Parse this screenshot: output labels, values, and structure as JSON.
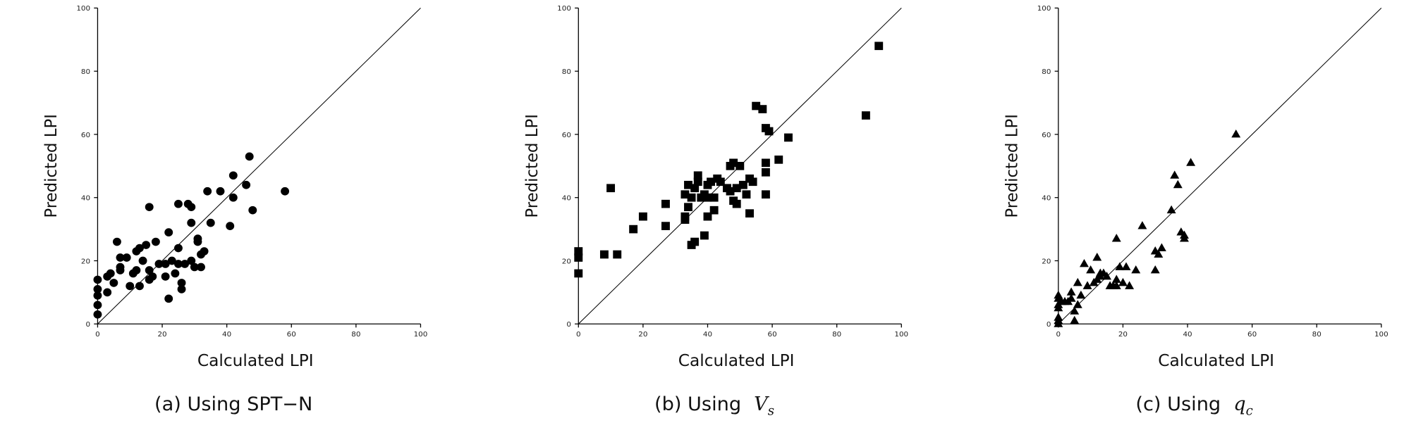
{
  "chart_data": [
    {
      "type": "scatter",
      "marker": "circle",
      "color": "#000000",
      "xlabel": "Calculated LPI",
      "ylabel": "Predicted LPI",
      "caption": "(a) Using SPT−N",
      "xlim": [
        0,
        100
      ],
      "ylim": [
        0,
        100
      ],
      "xticks": [
        0,
        20,
        40,
        60,
        80,
        100
      ],
      "yticks": [
        0,
        20,
        40,
        60,
        80,
        100
      ],
      "x": [
        0,
        0,
        0,
        0,
        0,
        3,
        3,
        4,
        5,
        6,
        7,
        7,
        7,
        9,
        10,
        11,
        12,
        12,
        13,
        13,
        14,
        15,
        16,
        16,
        16,
        17,
        18,
        19,
        21,
        21,
        22,
        22,
        23,
        24,
        25,
        25,
        25,
        26,
        26,
        27,
        28,
        29,
        29,
        29,
        30,
        31,
        31,
        32,
        32,
        33,
        34,
        35,
        38,
        41,
        42,
        42,
        46,
        47,
        48,
        58
      ],
      "values": [
        14,
        11,
        9,
        6,
        3,
        10,
        15,
        16,
        13,
        26,
        17,
        18,
        21,
        21,
        12,
        16,
        17,
        23,
        24,
        12,
        20,
        25,
        37,
        17,
        14,
        15,
        26,
        19,
        19,
        15,
        29,
        8,
        20,
        16,
        24,
        19,
        38,
        13,
        11,
        19,
        38,
        37,
        20,
        32,
        18,
        27,
        26,
        22,
        18,
        23,
        42,
        32,
        42,
        31,
        47,
        40,
        44,
        53,
        36,
        42
      ]
    },
    {
      "type": "scatter",
      "marker": "square",
      "color": "#000000",
      "xlabel": "Calculated LPI",
      "ylabel": "Predicted LPI",
      "caption": "(b) Using",
      "caption_symbol": "V",
      "caption_subscript": "s",
      "xlim": [
        0,
        100
      ],
      "ylim": [
        0,
        100
      ],
      "xticks": [
        0,
        20,
        40,
        60,
        80,
        100
      ],
      "yticks": [
        0,
        20,
        40,
        60,
        80,
        100
      ],
      "x": [
        0,
        0,
        0,
        8,
        10,
        12,
        17,
        20,
        27,
        27,
        33,
        33,
        33,
        34,
        34,
        35,
        35,
        36,
        36,
        37,
        37,
        38,
        39,
        39,
        40,
        40,
        40,
        41,
        42,
        42,
        43,
        44,
        46,
        47,
        47,
        48,
        48,
        49,
        49,
        50,
        51,
        52,
        53,
        53,
        54,
        55,
        57,
        58,
        58,
        58,
        58,
        59,
        62,
        65,
        89,
        93
      ],
      "values": [
        23,
        21,
        16,
        22,
        43,
        22,
        30,
        34,
        38,
        31,
        41,
        34,
        33,
        37,
        44,
        40,
        25,
        43,
        26,
        45,
        47,
        40,
        28,
        41,
        40,
        44,
        34,
        45,
        36,
        40,
        46,
        45,
        43,
        50,
        42,
        51,
        39,
        43,
        38,
        50,
        44,
        41,
        46,
        35,
        45,
        69,
        68,
        41,
        48,
        51,
        62,
        61,
        52,
        59,
        66,
        88
      ]
    },
    {
      "type": "scatter",
      "marker": "triangle",
      "color": "#000000",
      "xlabel": "Calculated LPI",
      "ylabel": "Predicted LPI",
      "caption": "(c) Using",
      "caption_symbol": "q",
      "caption_subscript": "c",
      "xlim": [
        0,
        100
      ],
      "ylim": [
        0,
        100
      ],
      "xticks": [
        0,
        20,
        40,
        60,
        80,
        100
      ],
      "yticks": [
        0,
        20,
        40,
        60,
        80,
        100
      ],
      "x": [
        0,
        0,
        0,
        0,
        0,
        0,
        0,
        1,
        2,
        3,
        4,
        4,
        5,
        5,
        6,
        6,
        7,
        8,
        9,
        10,
        11,
        12,
        12,
        13,
        13,
        14,
        15,
        16,
        17,
        18,
        18,
        18,
        19,
        20,
        21,
        22,
        24,
        26,
        30,
        30,
        31,
        32,
        35,
        36,
        37,
        38,
        39,
        39,
        41,
        55
      ],
      "values": [
        9,
        8,
        6,
        5,
        2,
        1,
        0,
        7,
        7,
        7,
        10,
        8,
        4,
        1,
        13,
        6,
        9,
        19,
        12,
        17,
        13,
        14,
        21,
        15,
        16,
        16,
        15,
        12,
        12,
        12,
        14,
        27,
        18,
        13,
        18,
        12,
        17,
        31,
        17,
        23,
        22,
        24,
        36,
        47,
        44,
        29,
        28,
        27,
        51,
        60
      ]
    }
  ]
}
